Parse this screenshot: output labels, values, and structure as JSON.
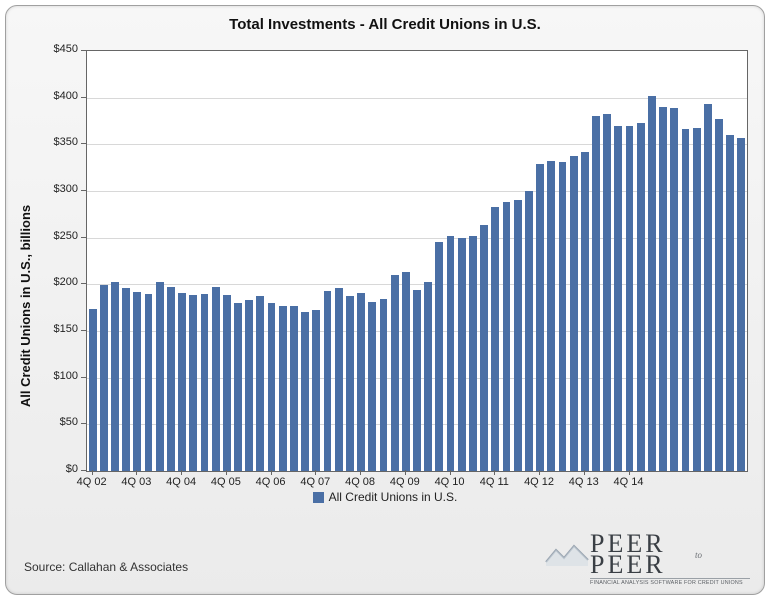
{
  "chart": {
    "type": "bar",
    "title": "Total Investments - All Credit Unions in U.S.",
    "ylabel": "All Credit Unions in U.S., billions",
    "ylim": [
      0,
      450
    ],
    "ytick_step": 50,
    "ytick_prefix": "$",
    "grid_color": "#d8d8d8",
    "background_color": "#ffffff",
    "bar_color": "#4a6fa5",
    "bar_width_ratio": 0.7,
    "axis_font_size": 11,
    "title_font_size": 15,
    "label_font_size": 13,
    "x_major_labels": [
      "4Q 02",
      "4Q 03",
      "4Q 04",
      "4Q 05",
      "4Q 06",
      "4Q 07",
      "4Q 08",
      "4Q 09",
      "4Q 10",
      "4Q 11",
      "4Q 12",
      "4Q 13",
      "4Q 14"
    ],
    "x_major_every": 4,
    "values": [
      174,
      199,
      202,
      196,
      192,
      190,
      203,
      197,
      191,
      189,
      190,
      197,
      189,
      180,
      183,
      188,
      180,
      177,
      177,
      170,
      173,
      193,
      196,
      187,
      191,
      181,
      184,
      210,
      213,
      194,
      202,
      245,
      252,
      250,
      252,
      264,
      283,
      288,
      290,
      300,
      329,
      332,
      331,
      338,
      342,
      380,
      382,
      370,
      370,
      373,
      402,
      390,
      389,
      366,
      367,
      393,
      377,
      360,
      357
    ],
    "series_label": "All Credit Unions in U.S."
  },
  "source_text": "Source: Callahan & Associates",
  "logo": {
    "line1": "PEER",
    "mid": "to",
    "line2": "PEER",
    "tagline": "FINANCIAL ANALYSIS SOFTWARE FOR CREDIT UNIONS"
  }
}
